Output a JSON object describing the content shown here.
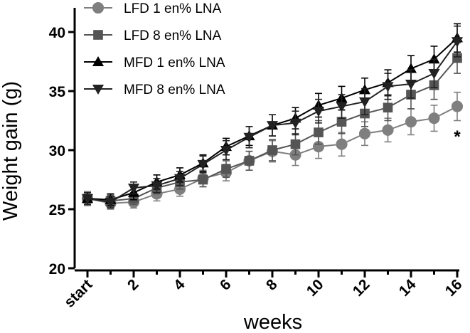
{
  "chart_data": {
    "type": "line",
    "title": "",
    "xlabel": "weeks",
    "ylabel": "Weight gain (g)",
    "ylim": [
      20,
      40
    ],
    "yticks": [
      20,
      25,
      30,
      35,
      40
    ],
    "x": [
      0,
      1,
      2,
      3,
      4,
      5,
      6,
      7,
      8,
      9,
      10,
      11,
      12,
      13,
      14,
      15,
      16
    ],
    "xticks": [
      {
        "value": 0,
        "label": "start"
      },
      {
        "value": 2,
        "label": "2"
      },
      {
        "value": 4,
        "label": "4"
      },
      {
        "value": 6,
        "label": "6"
      },
      {
        "value": 8,
        "label": "8"
      },
      {
        "value": 10,
        "label": "10"
      },
      {
        "value": 12,
        "label": "12"
      },
      {
        "value": 14,
        "label": "14"
      },
      {
        "value": 16,
        "label": "16"
      }
    ],
    "legend_position": "top-left",
    "series": [
      {
        "name": "LFD 1 en% LNA",
        "marker": "circle",
        "color": "#7f7f7f",
        "values": [
          25.9,
          25.5,
          25.6,
          26.3,
          26.7,
          27.6,
          28.1,
          29.1,
          29.9,
          29.6,
          30.3,
          30.5,
          31.4,
          31.7,
          32.4,
          32.7,
          33.7
        ],
        "errors": [
          0.6,
          0.5,
          0.5,
          0.6,
          0.6,
          0.7,
          0.7,
          0.8,
          0.9,
          0.9,
          1.0,
          1.0,
          1.0,
          1.0,
          1.1,
          1.1,
          1.2
        ]
      },
      {
        "name": "LFD 8 en% LNA",
        "marker": "square",
        "color": "#555555",
        "values": [
          25.9,
          25.7,
          25.9,
          26.8,
          27.3,
          27.5,
          28.4,
          29.1,
          30.0,
          30.5,
          31.5,
          32.4,
          33.1,
          33.6,
          34.7,
          35.5,
          37.8
        ],
        "errors": [
          0.5,
          0.5,
          0.5,
          0.5,
          0.6,
          0.6,
          0.7,
          0.8,
          0.9,
          0.9,
          1.0,
          1.0,
          1.1,
          1.1,
          1.2,
          1.2,
          1.3
        ]
      },
      {
        "name": "MFD 1 en% LNA",
        "marker": "triangle-up",
        "color": "#000000",
        "values": [
          25.9,
          25.8,
          26.4,
          27.3,
          27.9,
          28.9,
          30.3,
          31.2,
          32.1,
          32.7,
          33.8,
          34.4,
          35.1,
          35.7,
          36.9,
          37.7,
          39.5
        ],
        "errors": [
          0.5,
          0.5,
          0.6,
          0.6,
          0.6,
          0.7,
          0.7,
          0.8,
          0.9,
          0.9,
          1.0,
          1.0,
          1.0,
          1.1,
          1.1,
          1.1,
          1.2
        ]
      },
      {
        "name": "MFD 8 en% LNA",
        "marker": "triangle-down",
        "color": "#222222",
        "values": [
          25.9,
          25.6,
          26.8,
          27.0,
          27.6,
          28.8,
          30.0,
          31.1,
          32.1,
          32.3,
          33.3,
          33.7,
          34.1,
          35.4,
          35.6,
          36.5,
          39.2
        ],
        "errors": [
          0.5,
          0.5,
          0.5,
          0.6,
          0.6,
          0.7,
          0.8,
          0.9,
          0.9,
          1.0,
          1.0,
          1.0,
          1.1,
          1.1,
          1.2,
          1.2,
          1.3
        ]
      }
    ],
    "annotations": [
      {
        "text": "*",
        "x": 16,
        "y": 31.5
      }
    ]
  }
}
